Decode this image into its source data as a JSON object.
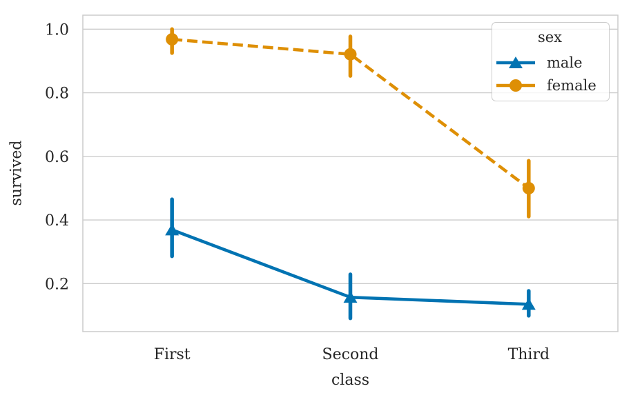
{
  "chart_data": {
    "type": "line",
    "subtype": "pointplot-with-error-bars",
    "title": "",
    "xlabel": "class",
    "ylabel": "survived",
    "categories": [
      "First",
      "Second",
      "Third"
    ],
    "series": [
      {
        "name": "male",
        "color": "#0173b2",
        "marker": "triangle",
        "linestyle": "solid",
        "values": [
          0.369,
          0.157,
          0.135
        ],
        "ci_low": [
          0.286,
          0.091,
          0.099
        ],
        "ci_high": [
          0.465,
          0.229,
          0.177
        ]
      },
      {
        "name": "female",
        "color": "#de8f05",
        "marker": "circle",
        "linestyle": "dashed",
        "values": [
          0.968,
          0.921,
          0.5
        ],
        "ci_low": [
          0.925,
          0.853,
          0.411
        ],
        "ci_high": [
          1.0,
          0.977,
          0.586
        ]
      }
    ],
    "yticks": [
      "0.2",
      "0.4",
      "0.6",
      "0.8",
      "1.0"
    ],
    "ytick_values": [
      0.2,
      0.4,
      0.6,
      0.8,
      1.0
    ],
    "ylim": [
      0.049,
      1.044
    ],
    "grid": true,
    "legend": {
      "title": "sex",
      "position": "upper right"
    }
  },
  "style": {
    "grid_color": "#cccccc",
    "border_color": "#cccccc",
    "text_color": "#262626",
    "background": "#ffffff"
  }
}
